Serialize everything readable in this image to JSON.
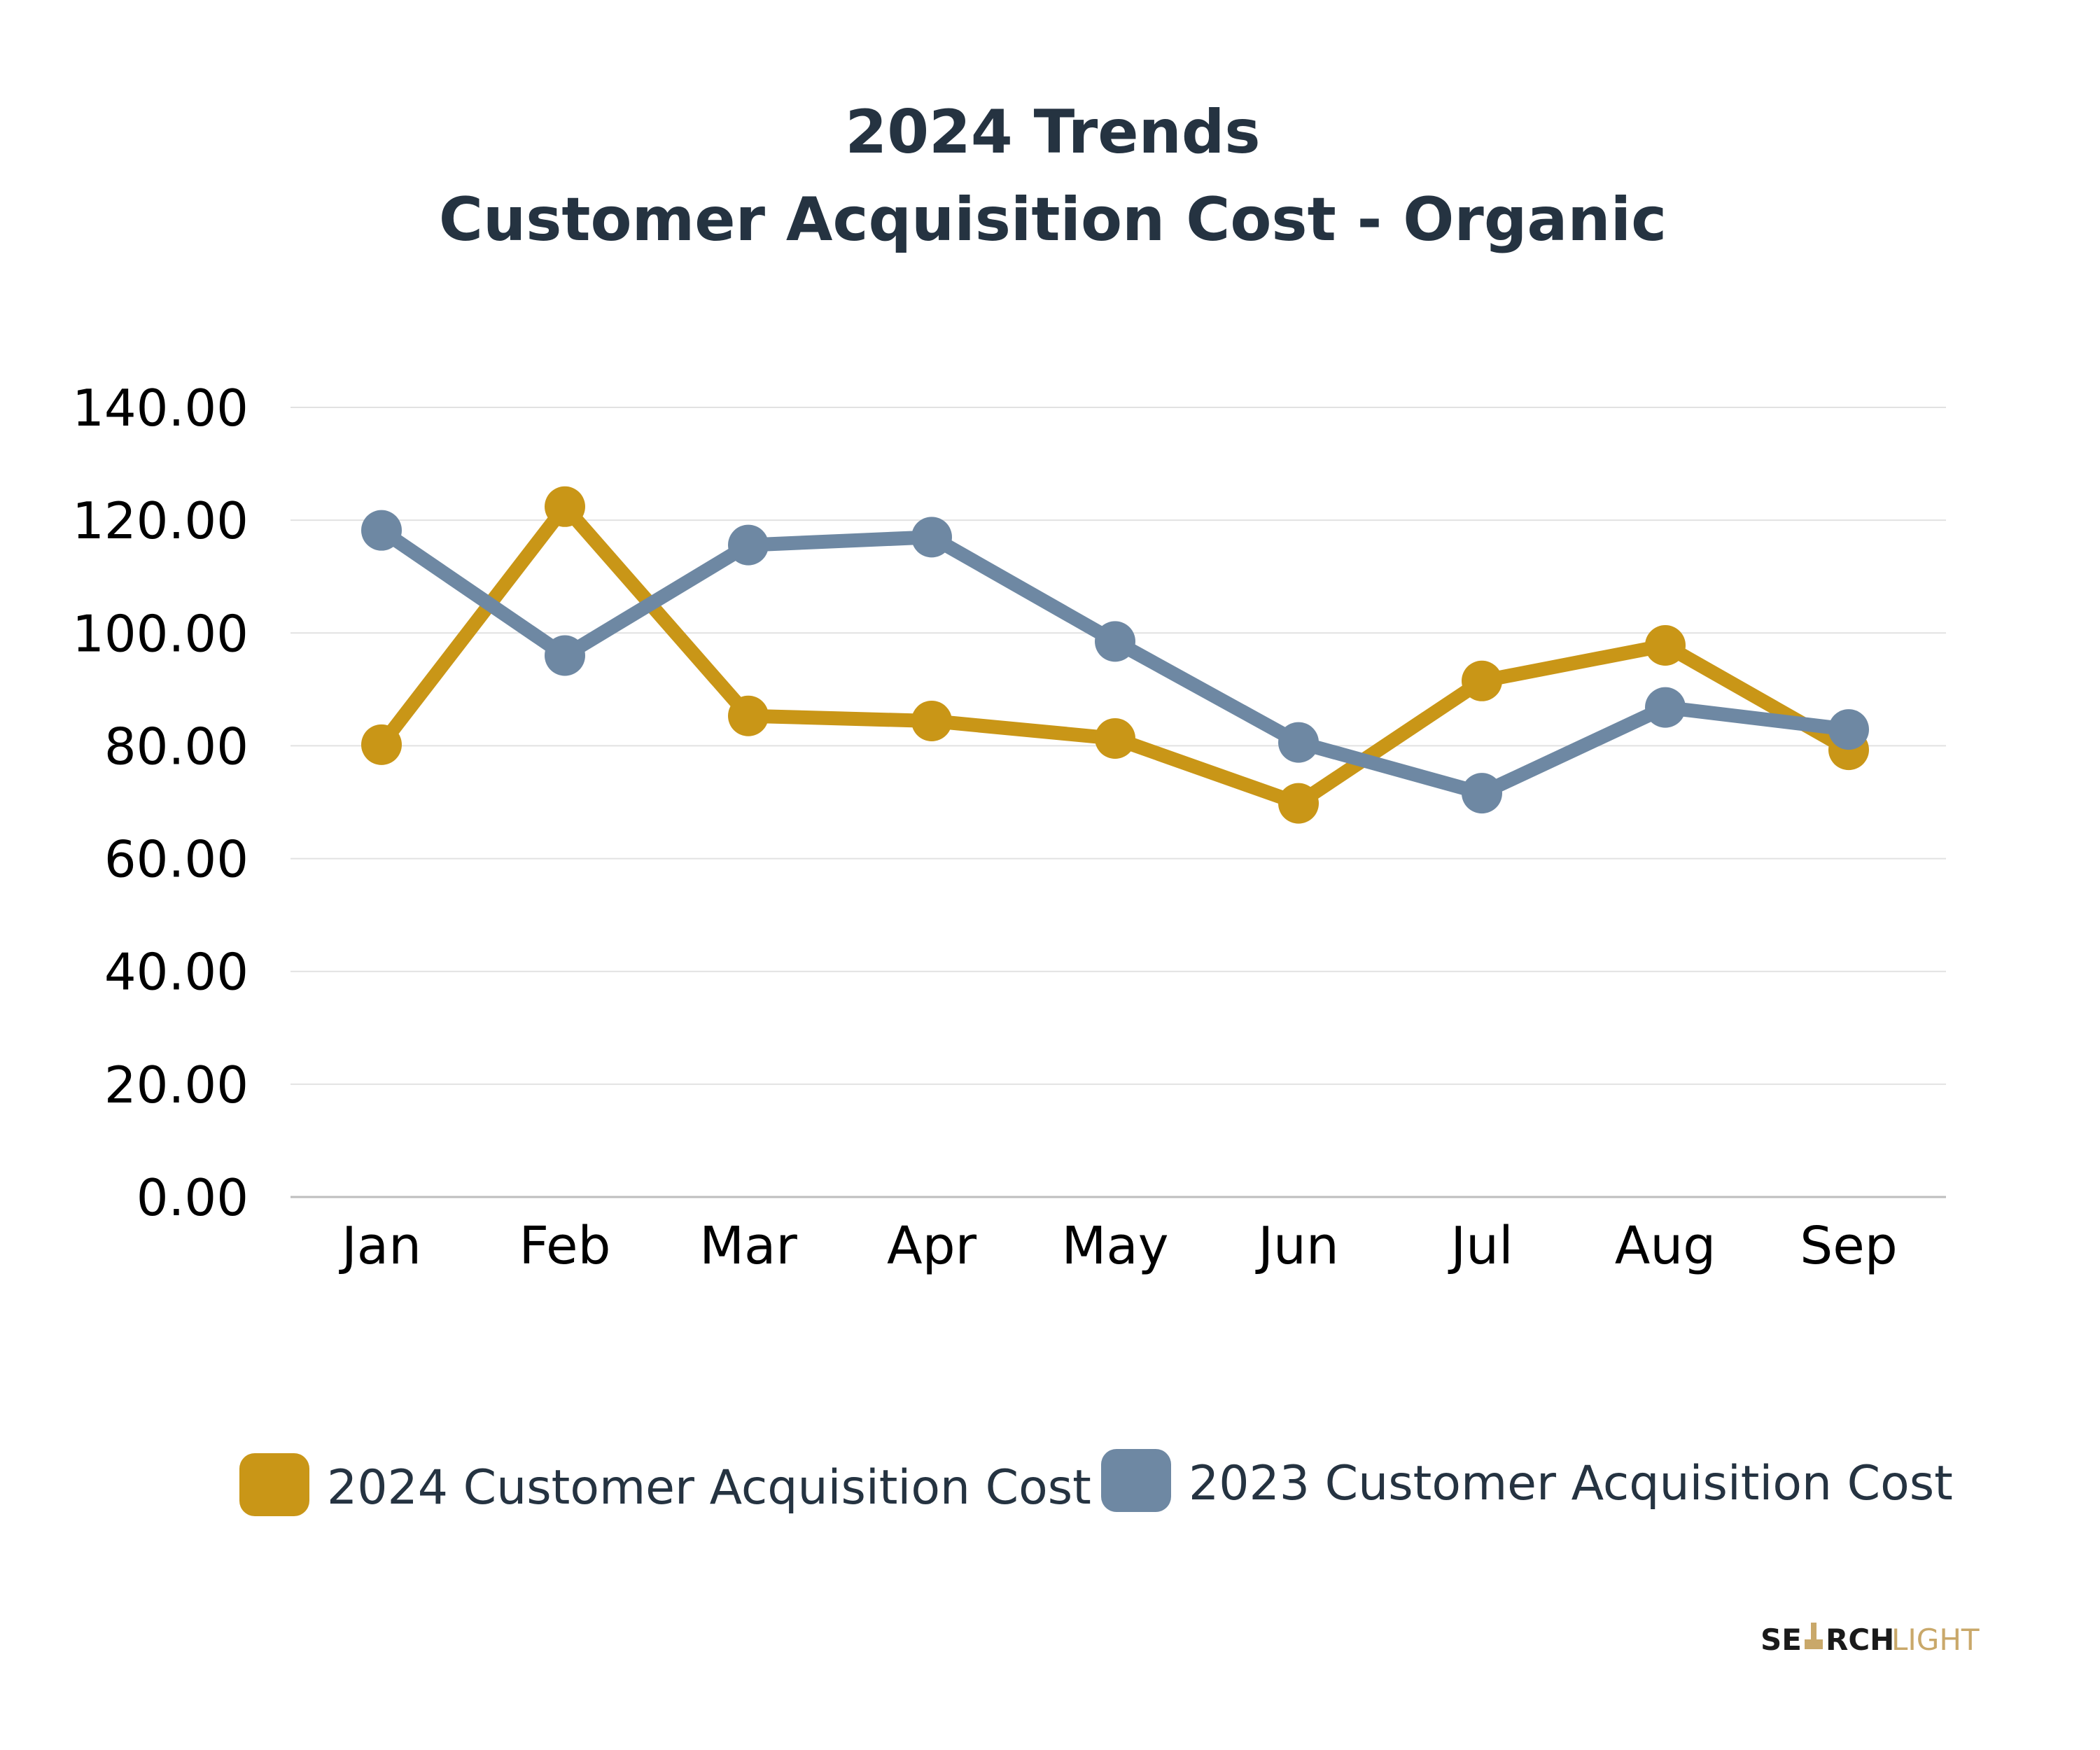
{
  "chart_data": {
    "type": "line",
    "title": "2024 Trends",
    "subtitle": "Customer Acquisition Cost - Organic",
    "xlabel": "",
    "ylabel": "",
    "categories": [
      "Jan",
      "Feb",
      "Mar",
      "Apr",
      "May",
      "Jun",
      "Jul",
      "Aug",
      "Sep"
    ],
    "ylim": [
      0,
      140
    ],
    "y_ticks": [
      "0.00",
      "20.00",
      "40.00",
      "60.00",
      "80.00",
      "100.00",
      "120.00",
      "140.00"
    ],
    "grid": true,
    "legend_position": "bottom",
    "series": [
      {
        "name": "2024 Customer Acquisition Cost",
        "color": "#C99617",
        "values": [
          80.2,
          122.4,
          85.3,
          84.4,
          81.3,
          69.8,
          91.5,
          97.8,
          79.3
        ]
      },
      {
        "name": "2023 Customer Acquisition Cost",
        "color": "#6E88A3",
        "values": [
          118.2,
          96.0,
          115.6,
          117.0,
          98.5,
          80.6,
          71.6,
          86.8,
          82.9
        ]
      }
    ]
  },
  "branding": {
    "logo_dark": "SE",
    "logo_dark_2": "RCH",
    "logo_light": "LIGHT"
  }
}
